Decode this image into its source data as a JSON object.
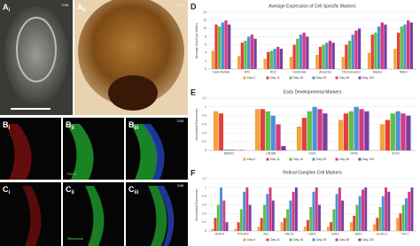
{
  "panels": {
    "a1": {
      "letter": "A",
      "sub": "i",
      "day": "D16"
    },
    "a2": {
      "letter": "A",
      "sub": "ii",
      "day": "D45"
    },
    "b1": {
      "letter": "B",
      "sub": "i"
    },
    "b2": {
      "letter": "B",
      "sub": "ii",
      "stain": "PAX6"
    },
    "b3": {
      "letter": "B",
      "sub": "iii",
      "day": "D33"
    },
    "c1": {
      "letter": "C",
      "sub": "i"
    },
    "c2": {
      "letter": "C",
      "sub": "ii",
      "stain": "Recoverin"
    },
    "c3": {
      "letter": "C",
      "sub": "iii",
      "day": "D46"
    }
  },
  "chart_data": [
    {
      "type": "bar",
      "panel": "D",
      "title": "Average Expression of Cell Specific Markers",
      "y_label": "Average Count per Million",
      "categories": [
        "Early Retinal",
        "NPC",
        "RGC",
        "Horizontal",
        "Amacrine",
        "Photoreceptor",
        "Bipolar",
        "Müller"
      ],
      "ylim": [
        0,
        14
      ],
      "yticks": [
        0,
        2,
        4,
        6,
        8,
        10,
        12,
        14
      ],
      "grid": true,
      "series": [
        {
          "name": "Day 0",
          "color": "#f2a33a",
          "values": [
            4.5,
            3.2,
            2.5,
            3.0,
            3.5,
            3.0,
            4.0,
            5.0
          ]
        },
        {
          "name": "Day 11",
          "color": "#e5403a",
          "values": [
            11.0,
            6.5,
            4.2,
            6.0,
            5.5,
            6.0,
            8.5,
            9.0
          ]
        },
        {
          "name": "Day 16",
          "color": "#5fbf45",
          "values": [
            10.5,
            7.0,
            4.5,
            7.5,
            6.0,
            7.0,
            9.0,
            10.5
          ]
        },
        {
          "name": "Day 25",
          "color": "#4f8fd6",
          "values": [
            11.5,
            8.0,
            5.0,
            8.5,
            6.5,
            8.5,
            10.5,
            11.0
          ]
        },
        {
          "name": "Day 45",
          "color": "#d6397f",
          "values": [
            12.0,
            8.5,
            5.5,
            9.0,
            7.0,
            9.5,
            11.5,
            12.0
          ]
        },
        {
          "name": "Day 120",
          "color": "#7b3fa0",
          "values": [
            11.0,
            7.5,
            5.0,
            8.0,
            6.5,
            10.0,
            11.0,
            11.5
          ]
        }
      ]
    },
    {
      "type": "bar",
      "panel": "E",
      "title": "Early Developmental Markers",
      "y_label": "Normalized Expression",
      "categories": [
        "RBMX2",
        "LIN28B",
        "VSX2",
        "PAX6",
        "SOX2"
      ],
      "ylim": [
        0,
        1.2
      ],
      "yticks": [
        0,
        0.2,
        0.4,
        0.6,
        0.8,
        1,
        1.2
      ],
      "grid": true,
      "series": [
        {
          "name": "Day 0",
          "color": "#f2a33a",
          "values": [
            0.9,
            0.95,
            0.55,
            0.7,
            0.6
          ]
        },
        {
          "name": "Day 11",
          "color": "#e5403a",
          "values": [
            0.85,
            0.95,
            0.75,
            0.85,
            0.7
          ]
        },
        {
          "name": "Day 16",
          "color": "#5fbf45",
          "values": [
            0.02,
            0.9,
            0.9,
            0.9,
            0.85
          ]
        },
        {
          "name": "Day 25",
          "color": "#4f8fd6",
          "values": [
            0.02,
            0.8,
            1.0,
            1.0,
            0.9
          ]
        },
        {
          "name": "Day 45",
          "color": "#d6397f",
          "values": [
            0.01,
            0.6,
            0.95,
            0.95,
            0.85
          ]
        },
        {
          "name": "Day 120",
          "color": "#7b3fa0",
          "values": [
            0.01,
            0.1,
            0.85,
            0.9,
            0.8
          ]
        }
      ]
    },
    {
      "type": "bar",
      "panel": "F",
      "title": "Retinal Ganglion Cell Markers",
      "y_label": "Normalized Expression",
      "categories": [
        "ATOH7",
        "POU4F2",
        "ISL1",
        "SNCG",
        "EBF1",
        "EBF3",
        "NEFL",
        "ELAVL4",
        "THY1"
      ],
      "ylim": [
        0,
        1.2
      ],
      "yticks": [
        0,
        0.2,
        0.4,
        0.6,
        0.8,
        1,
        1.2
      ],
      "grid": true,
      "series": [
        {
          "name": "Day 0",
          "color": "#f2a33a",
          "values": [
            0.05,
            0.05,
            0.1,
            0.2,
            0.1,
            0.1,
            0.2,
            0.15,
            0.3
          ]
        },
        {
          "name": "Day 11",
          "color": "#e5403a",
          "values": [
            0.3,
            0.2,
            0.3,
            0.3,
            0.25,
            0.2,
            0.35,
            0.3,
            0.4
          ]
        },
        {
          "name": "Day 16",
          "color": "#5fbf45",
          "values": [
            0.6,
            0.5,
            0.6,
            0.5,
            0.55,
            0.5,
            0.6,
            0.55,
            0.6
          ]
        },
        {
          "name": "Day 25",
          "color": "#4f8fd6",
          "values": [
            1.0,
            0.9,
            0.85,
            0.7,
            0.9,
            0.85,
            0.8,
            0.8,
            0.75
          ]
        },
        {
          "name": "Day 45",
          "color": "#d6397f",
          "values": [
            0.7,
            1.0,
            1.0,
            0.9,
            1.0,
            1.0,
            0.95,
            1.0,
            0.9
          ]
        },
        {
          "name": "Day 120",
          "color": "#7b3fa0",
          "values": [
            0.2,
            0.6,
            0.7,
            1.0,
            0.6,
            0.7,
            1.0,
            0.9,
            1.0
          ]
        }
      ]
    }
  ]
}
